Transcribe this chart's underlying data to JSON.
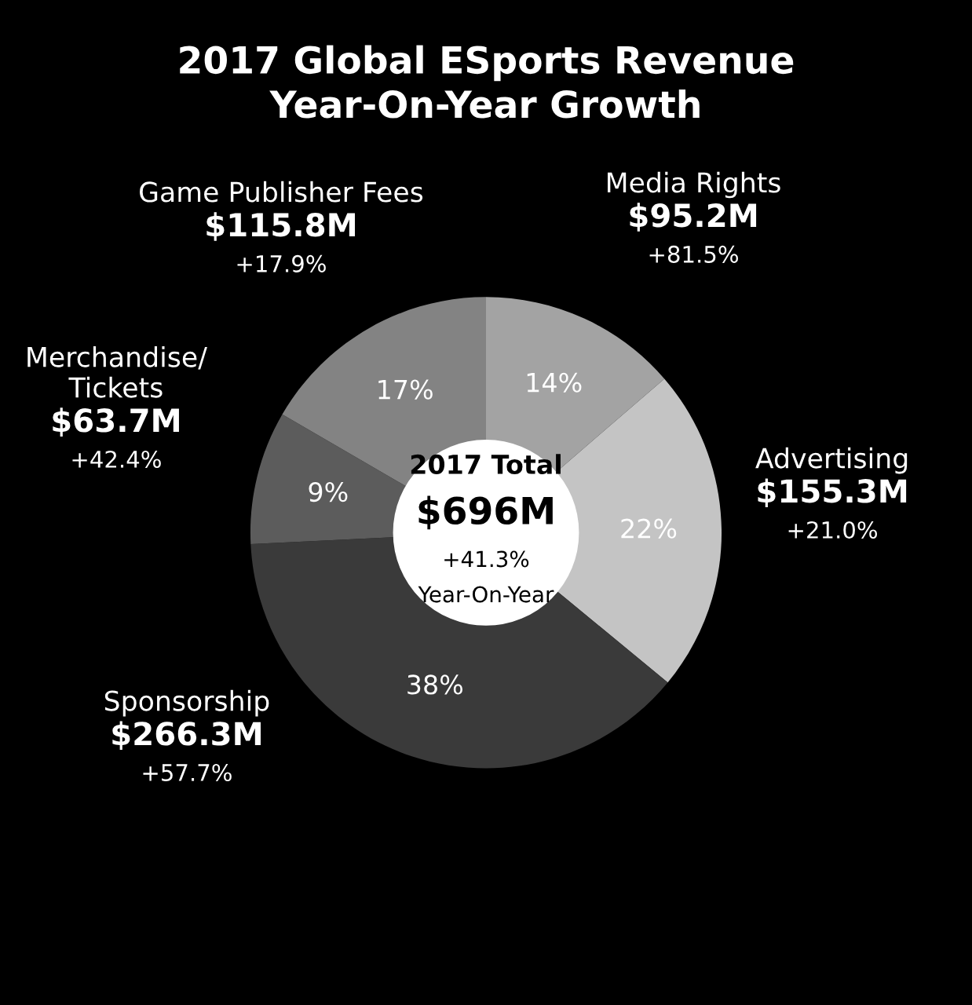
{
  "chart_data": {
    "type": "donut",
    "title": "2017 Global ESports Revenue\nYear-On-Year Growth",
    "categories": [
      "Media Rights",
      "Advertising",
      "Sponsorship",
      "Merchandise/\nTickets",
      "Game Publisher Fees"
    ],
    "values": [
      95.2,
      155.3,
      266.3,
      63.7,
      115.8
    ],
    "colors": [
      "#a3a3a3",
      "#c4c4c4",
      "#3a3a3a",
      "#5c5c5c",
      "#838383"
    ],
    "value_labels": [
      "$95.2M",
      "$155.3M",
      "$266.3M",
      "$63.7M",
      "$115.8M"
    ],
    "annotations": [
      "2017 Total",
      "$696M",
      "+41.3%",
      "Year-On-Year",
      {
        "text": "14%",
        "x": "Media Rights"
      },
      {
        "text": "+81.5%",
        "x": "Media Rights"
      },
      {
        "text": "22%",
        "x": "Advertising"
      },
      {
        "text": "+21.0%",
        "x": "Advertising"
      },
      {
        "text": "38%",
        "x": "Sponsorship"
      },
      {
        "text": "+57.7%",
        "x": "Sponsorship"
      },
      {
        "text": "9%",
        "x": "Merchandise/\nTickets"
      },
      {
        "text": "+42.4%",
        "x": "Merchandise/\nTickets"
      },
      {
        "text": "17%",
        "x": "Game Publisher Fees"
      },
      {
        "text": "+17.9%",
        "x": "Game Publisher Fees"
      }
    ],
    "legend": false
  }
}
